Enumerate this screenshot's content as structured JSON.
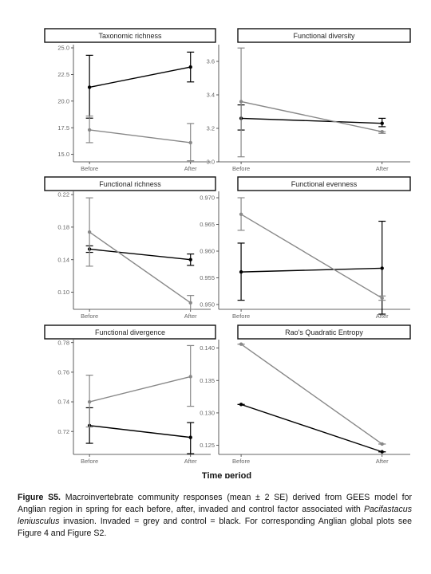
{
  "chart_data": [
    {
      "type": "line",
      "title": "Taxonomic richness",
      "categories": [
        "Before",
        "After"
      ],
      "ylim": [
        14.3,
        25.3
      ],
      "yticks": [
        15.0,
        17.5,
        20.0,
        22.5,
        25.0
      ],
      "yticklabels": [
        "15.0",
        "17.5",
        "20.0",
        "22.5",
        "25.0"
      ],
      "series": [
        {
          "values": [
            21.3,
            23.2
          ],
          "lower": [
            18.4,
            21.8
          ],
          "upper": [
            24.3,
            24.6
          ],
          "color": "#000000"
        },
        {
          "values": [
            17.3,
            16.1
          ],
          "lower": [
            16.1,
            14.4
          ],
          "upper": [
            18.6,
            17.9
          ],
          "color": "#888888"
        }
      ]
    },
    {
      "type": "line",
      "title": "Functional diversity",
      "categories": [
        "Before",
        "After"
      ],
      "ylim": [
        3.0,
        3.7
      ],
      "yticks": [
        3.0,
        3.2,
        3.4,
        3.6
      ],
      "yticklabels": [
        "3.0",
        "3.2",
        "3.4",
        "3.6"
      ],
      "series": [
        {
          "values": [
            3.26,
            3.23
          ],
          "lower": [
            3.19,
            3.21
          ],
          "upper": [
            3.34,
            3.26
          ],
          "color": "#000000"
        },
        {
          "values": [
            3.36,
            3.18
          ],
          "lower": [
            3.03,
            3.17
          ],
          "upper": [
            3.68,
            3.18
          ],
          "color": "#888888"
        }
      ]
    },
    {
      "type": "line",
      "title": "Functional richness",
      "categories": [
        "Before",
        "After"
      ],
      "ylim": [
        0.079,
        0.224
      ],
      "yticks": [
        0.1,
        0.14,
        0.18,
        0.22
      ],
      "yticklabels": [
        "0.10",
        "0.14",
        "0.18",
        "0.22"
      ],
      "series": [
        {
          "values": [
            0.153,
            0.14
          ],
          "lower": [
            0.149,
            0.133
          ],
          "upper": [
            0.157,
            0.147
          ],
          "color": "#000000"
        },
        {
          "values": [
            0.174,
            0.087
          ],
          "lower": [
            0.132,
            0.079
          ],
          "upper": [
            0.216,
            0.096
          ],
          "color": "#888888"
        }
      ]
    },
    {
      "type": "line",
      "title": "Functional evenness",
      "categories": [
        "Before",
        "After"
      ],
      "ylim": [
        0.9491,
        0.9712
      ],
      "yticks": [
        0.95,
        0.955,
        0.96,
        0.965,
        0.97
      ],
      "yticklabels": [
        "0.950",
        "0.955",
        "0.960",
        "0.965",
        "0.970"
      ],
      "series": [
        {
          "values": [
            0.9561,
            0.9568
          ],
          "lower": [
            0.9508,
            0.9482
          ],
          "upper": [
            0.9615,
            0.9656
          ],
          "color": "#000000"
        },
        {
          "values": [
            0.9669,
            0.9512
          ],
          "lower": [
            0.9639,
            0.9508
          ],
          "upper": [
            0.97,
            0.9516
          ],
          "color": "#888888"
        }
      ]
    },
    {
      "type": "line",
      "title": "Functional divergence",
      "categories": [
        "Before",
        "After"
      ],
      "ylim": [
        0.7045,
        0.782
      ],
      "yticks": [
        0.72,
        0.74,
        0.76,
        0.78
      ],
      "yticklabels": [
        "0.72",
        "0.74",
        "0.76",
        "0.78"
      ],
      "series": [
        {
          "values": [
            0.724,
            0.716
          ],
          "lower": [
            0.712,
            0.705
          ],
          "upper": [
            0.736,
            0.726
          ],
          "color": "#000000"
        },
        {
          "values": [
            0.74,
            0.757
          ],
          "lower": [
            0.723,
            0.737
          ],
          "upper": [
            0.758,
            0.778
          ],
          "color": "#888888"
        }
      ]
    },
    {
      "type": "line",
      "title": "Rao's Quadratic Entropy",
      "categories": [
        "Before",
        "After"
      ],
      "ylim": [
        0.1236,
        0.1413
      ],
      "yticks": [
        0.125,
        0.13,
        0.135,
        0.14
      ],
      "yticklabels": [
        "0.125",
        "0.130",
        "0.135",
        "0.140"
      ],
      "series": [
        {
          "values": [
            0.1313,
            0.124
          ],
          "lower": [
            0.1313,
            0.124
          ],
          "upper": [
            0.1313,
            0.124
          ],
          "color": "#000000"
        },
        {
          "values": [
            0.1406,
            0.1252
          ],
          "lower": [
            0.1406,
            0.1252
          ],
          "upper": [
            0.1406,
            0.1252
          ],
          "color": "#888888"
        }
      ]
    }
  ],
  "xlabel": "Time period",
  "caption": {
    "label": "Figure S5.",
    "text1": " Macroinvertebrate community responses (mean ± 2 SE) derived from GEES model for Anglian region in spring for each before, after, invaded and control factor associated with ",
    "species": "Pacifastacus leniusculus",
    "text2": " invasion. Invaded = grey and control = black. For corresponding Anglian global plots see Figure 4 and Figure S2."
  },
  "colors": {
    "control": "#000000",
    "invaded": "#888888",
    "axis": "#333333"
  }
}
